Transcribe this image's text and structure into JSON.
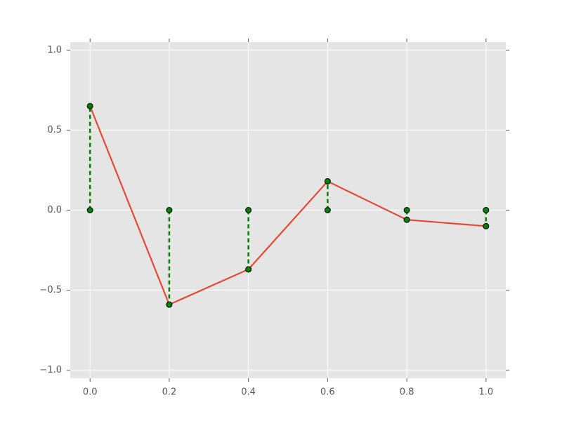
{
  "chart_data": {
    "type": "line",
    "x": [
      0,
      0.2,
      0.4,
      0.6,
      0.8,
      1.0
    ],
    "values": [
      0.65,
      -0.59,
      -0.37,
      0.18,
      -0.06,
      -0.1
    ],
    "color": "#e24a33",
    "stem": {
      "color": "#008000",
      "baseline": 0,
      "marker_color": "#008000"
    },
    "xlim": [
      -0.05,
      1.05
    ],
    "ylim": [
      -1.05,
      1.05
    ],
    "xticks": [
      {
        "value": 0,
        "label": "0.0"
      },
      {
        "value": 0.2,
        "label": "0.2"
      },
      {
        "value": 0.4,
        "label": "0.4"
      },
      {
        "value": 0.6,
        "label": "0.6"
      },
      {
        "value": 0.8,
        "label": "0.8"
      },
      {
        "value": 1.0,
        "label": "1.0"
      }
    ],
    "yticks": [
      {
        "value": -1.0,
        "label": "−1.0"
      },
      {
        "value": -0.5,
        "label": "−0.5"
      },
      {
        "value": 0,
        "label": "0.0"
      },
      {
        "value": 0.5,
        "label": "0.5"
      },
      {
        "value": 1.0,
        "label": "1.0"
      }
    ],
    "grid": true
  }
}
